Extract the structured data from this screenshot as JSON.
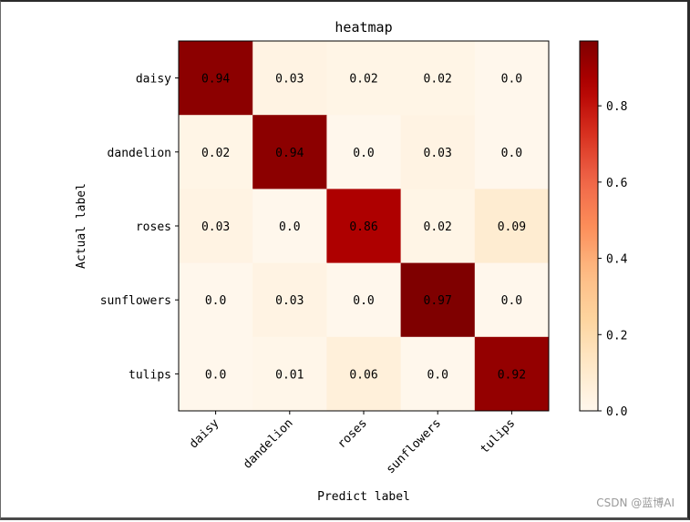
{
  "chart_data": {
    "type": "heatmap",
    "title": "heatmap",
    "xlabel": "Predict label",
    "ylabel": "Actual label",
    "x_categories": [
      "daisy",
      "dandelion",
      "roses",
      "sunflowers",
      "tulips"
    ],
    "y_categories": [
      "daisy",
      "dandelion",
      "roses",
      "sunflowers",
      "tulips"
    ],
    "values": [
      [
        0.94,
        0.03,
        0.02,
        0.02,
        0.0
      ],
      [
        0.02,
        0.94,
        0.0,
        0.03,
        0.0
      ],
      [
        0.03,
        0.0,
        0.86,
        0.02,
        0.09
      ],
      [
        0.0,
        0.03,
        0.0,
        0.97,
        0.0
      ],
      [
        0.0,
        0.01,
        0.06,
        0.0,
        0.92
      ]
    ],
    "value_labels": [
      [
        "0.94",
        "0.03",
        "0.02",
        "0.02",
        "0.0"
      ],
      [
        "0.02",
        "0.94",
        "0.0",
        "0.03",
        "0.0"
      ],
      [
        "0.03",
        "0.0",
        "0.86",
        "0.02",
        "0.09"
      ],
      [
        "0.0",
        "0.03",
        "0.0",
        "0.97",
        "0.0"
      ],
      [
        "0.0",
        "0.01",
        "0.06",
        "0.0",
        "0.92"
      ]
    ],
    "colormap": "OrRd",
    "colorbar": {
      "range": [
        0.0,
        0.97
      ],
      "ticks": [
        0.0,
        0.2,
        0.4,
        0.6,
        0.8
      ],
      "tick_labels": [
        "0.0",
        "0.2",
        "0.4",
        "0.6",
        "0.8"
      ]
    }
  },
  "watermark": "CSDN @蓝博AI"
}
